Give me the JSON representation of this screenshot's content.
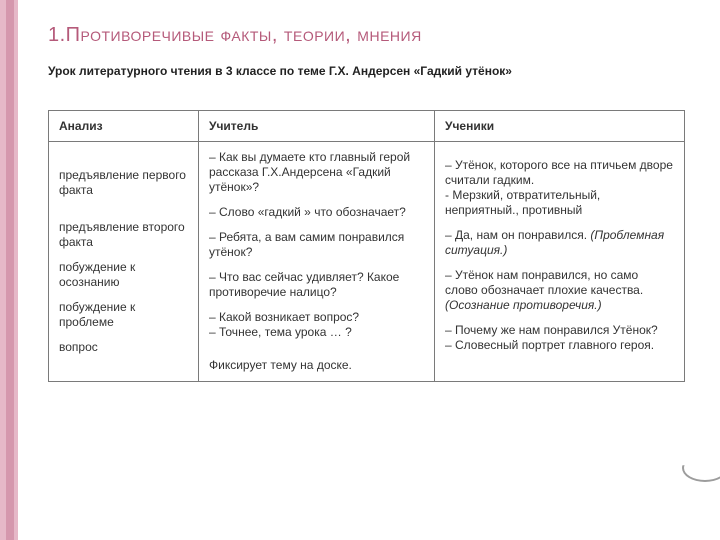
{
  "title": {
    "text": "1.Противоречивые факты, теории, мнения",
    "color": "#b55a7a",
    "fontsize": 20
  },
  "subtitle": {
    "text": "Урок литературного чтения в 3 классе по теме Г.Х. Андерсен «Гадкий утёнок»",
    "fontsize": 12,
    "color": "#222222"
  },
  "accent": {
    "light": "#e6b8c8",
    "dark": "#b55a7a"
  },
  "table": {
    "border_color": "#7a7a7a",
    "header_fontsize": 13,
    "body_fontsize": 12,
    "columns": [
      "Анализ",
      "Учитель",
      "Ученики"
    ],
    "rows": [
      {
        "analysis": [
          "предъявление первого факта",
          "предъявление второго факта",
          "побуждение к осознанию",
          "побуждение к проблеме",
          "вопрос"
        ],
        "teacher": [
          "– Как вы думаете кто главный герой рассказа Г.Х.Андерсена «Гадкий утёнок»?",
          "– Слово «гадкий »  что обозначает?",
          "– Ребята, а вам самим понравился  утёнок?",
          "– Что вас сейчас удивляет? Какое противоречие налицо?",
          "– Какой возникает вопрос?\n– Точнее, тема урока … ?",
          "Фиксирует тему на доске."
        ],
        "students": [
          {
            "plain": "– Утёнок, которого все на птичьем дворе считали гадким.\n- Мерзкий, отвратительный, неприятный., противный"
          },
          {
            "plain": "– Да, нам он понравился. ",
            "italic": "(Проблемная ситуация.)"
          },
          {
            "plain": "– Утёнок нам понравился, но само слово обозначает плохие качества. ",
            "italic": "(Осознание противоречия.)"
          },
          {
            "plain": "– Почему же нам понравился Утёнок?\n– Словесный портрет  главного героя."
          }
        ]
      }
    ]
  }
}
